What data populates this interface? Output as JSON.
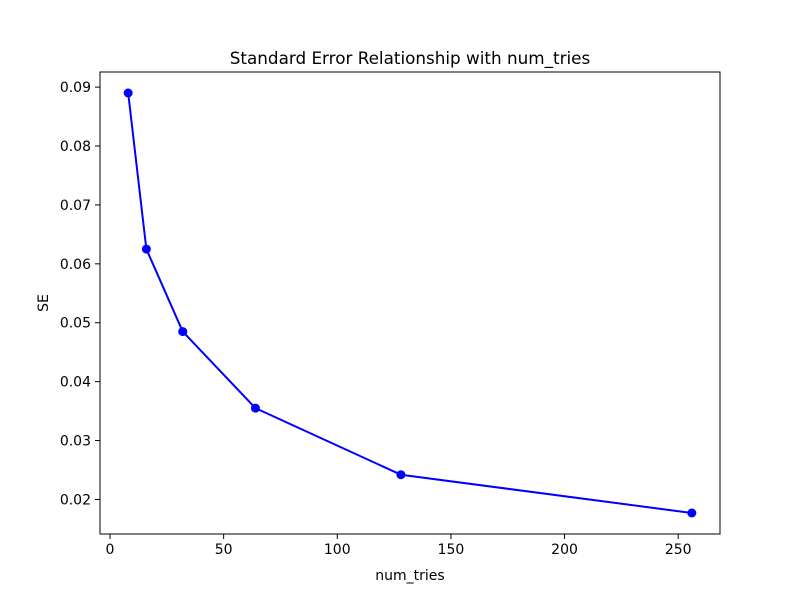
{
  "chart_data": {
    "type": "line",
    "title": "Standard Error Relationship with num_tries",
    "xlabel": "num_tries",
    "ylabel": "SE",
    "x": [
      8,
      16,
      32,
      64,
      128,
      256
    ],
    "y": [
      0.089,
      0.0625,
      0.0485,
      0.0355,
      0.0242,
      0.0177
    ],
    "x_ticks": [
      0,
      50,
      100,
      150,
      200,
      250
    ],
    "x_tick_labels": [
      "0",
      "50",
      "100",
      "150",
      "200",
      "250"
    ],
    "y_ticks": [
      0.02,
      0.03,
      0.04,
      0.05,
      0.06,
      0.07,
      0.08,
      0.09
    ],
    "y_tick_labels": [
      "0.02",
      "0.03",
      "0.04",
      "0.05",
      "0.06",
      "0.07",
      "0.08",
      "0.09"
    ],
    "xlim": [
      -4.4,
      268.4
    ],
    "ylim": [
      0.014135,
      0.092565
    ],
    "grid": false,
    "legend": false,
    "line_color": "#0000FF",
    "marker": "circle",
    "marker_color": "#0000FF",
    "axis_color": "#000000",
    "background_color": "#FFFFFF"
  }
}
